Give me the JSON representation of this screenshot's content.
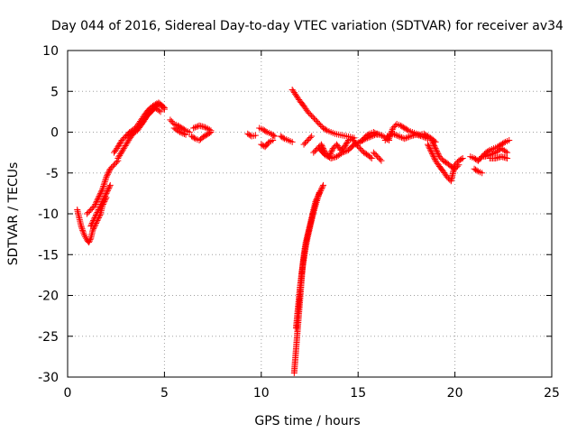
{
  "chart_data": {
    "type": "scatter",
    "title": "Day 044 of 2016, Sidereal Day-to-day VTEC variation (SDTVAR) for receiver av34",
    "xlabel": "GPS time / hours",
    "ylabel": "SDTVAR / TECUs",
    "xlim": [
      0,
      25
    ],
    "ylim": [
      -30,
      10
    ],
    "xticks": [
      0,
      5,
      10,
      15,
      20,
      25
    ],
    "yticks": [
      -30,
      -25,
      -20,
      -15,
      -10,
      -5,
      0,
      5,
      10
    ],
    "xtick_labels": [
      "0",
      "5",
      "10",
      "15",
      "20",
      "25"
    ],
    "ytick_labels": [
      "-30",
      "-25",
      "-20",
      "-15",
      "-10",
      "-5",
      "0",
      "5",
      "10"
    ],
    "grid": true,
    "marker": "+",
    "color": "#ff0000",
    "series": [
      {
        "name": "SDTVAR",
        "segments": [
          {
            "x": [
              0.5,
              0.6,
              0.7,
              0.8,
              0.9,
              1.0,
              1.1,
              1.2,
              1.3,
              1.4,
              1.5,
              1.6,
              1.7,
              1.8,
              1.9,
              2.0
            ],
            "y": [
              -9.5,
              -10.5,
              -11.5,
              -12.2,
              -12.8,
              -13.2,
              -13.5,
              -13.0,
              -12.0,
              -11.5,
              -11.0,
              -10.5,
              -10.0,
              -9.0,
              -8.5,
              -8.0
            ]
          },
          {
            "x": [
              1.0,
              1.2,
              1.4,
              1.6,
              1.8,
              2.0,
              2.2,
              2.4,
              2.6
            ],
            "y": [
              -10.0,
              -9.5,
              -9.0,
              -8.0,
              -7.0,
              -5.5,
              -4.5,
              -4.0,
              -3.5
            ]
          },
          {
            "x": [
              1.2,
              1.4,
              1.6,
              1.8,
              2.0,
              2.2
            ],
            "y": [
              -11.5,
              -10.5,
              -9.5,
              -8.5,
              -7.5,
              -6.5
            ]
          },
          {
            "x": [
              2.4,
              2.6,
              2.8,
              3.0,
              3.2,
              3.4,
              3.6,
              3.8,
              4.0,
              4.2,
              4.4,
              4.6,
              4.8,
              5.0
            ],
            "y": [
              -2.5,
              -1.8,
              -1.0,
              -0.5,
              0.0,
              0.3,
              0.8,
              1.5,
              2.2,
              2.8,
              3.2,
              3.5,
              3.3,
              2.8
            ]
          },
          {
            "x": [
              2.6,
              2.9,
              3.2,
              3.5,
              3.8,
              4.1,
              4.4,
              4.7,
              5.0
            ],
            "y": [
              -3.2,
              -2.0,
              -0.8,
              0.2,
              1.0,
              2.0,
              2.7,
              3.6,
              3.0
            ]
          },
          {
            "x": [
              3.0,
              3.3,
              3.6,
              3.9,
              4.2,
              4.5,
              4.8
            ],
            "y": [
              -0.5,
              -0.2,
              0.2,
              1.2,
              2.4,
              3.0,
              2.5
            ]
          },
          {
            "x": [
              5.3,
              5.5,
              5.7,
              5.9,
              6.1,
              6.3
            ],
            "y": [
              1.5,
              1.0,
              0.8,
              0.5,
              0.2,
              0.0
            ]
          },
          {
            "x": [
              5.5,
              5.8,
              6.1
            ],
            "y": [
              0.5,
              0.0,
              -0.3
            ]
          },
          {
            "x": [
              6.4,
              6.6,
              6.8,
              7.0,
              7.2,
              7.4
            ],
            "y": [
              -0.5,
              -0.8,
              -1.0,
              -0.6,
              -0.3,
              0.0
            ]
          },
          {
            "x": [
              6.5,
              6.8,
              7.1,
              7.4
            ],
            "y": [
              0.5,
              0.8,
              0.6,
              0.2
            ]
          },
          {
            "x": [
              9.3,
              9.5,
              9.7
            ],
            "y": [
              -0.2,
              -0.5,
              -0.4
            ]
          },
          {
            "x": [
              9.9,
              10.1,
              10.3,
              10.5,
              10.7
            ],
            "y": [
              0.5,
              0.3,
              0.0,
              -0.2,
              -0.5
            ]
          },
          {
            "x": [
              10.0,
              10.2,
              10.4,
              10.6
            ],
            "y": [
              -1.5,
              -1.8,
              -1.2,
              -1.0
            ]
          },
          {
            "x": [
              11.0,
              11.2,
              11.4,
              11.6
            ],
            "y": [
              -0.5,
              -0.8,
              -1.0,
              -1.2
            ]
          },
          {
            "x": [
              11.6,
              11.8,
              12.0,
              12.2,
              12.4,
              12.6,
              12.8,
              13.0,
              13.2,
              13.4,
              13.6,
              13.8,
              14.0,
              14.2,
              14.4,
              14.6,
              14.8
            ],
            "y": [
              5.2,
              4.5,
              3.8,
              3.2,
              2.5,
              2.0,
              1.5,
              1.0,
              0.5,
              0.2,
              0.0,
              -0.2,
              -0.3,
              -0.4,
              -0.5,
              -0.6,
              -0.7
            ]
          },
          {
            "x": [
              11.7,
              11.75,
              11.8,
              11.85,
              11.9,
              11.95,
              12.0,
              12.05,
              12.1,
              12.15,
              12.2,
              12.3,
              12.4,
              12.5,
              12.6,
              12.7,
              12.8,
              12.9,
              13.0,
              13.1,
              13.2
            ],
            "y": [
              -29.5,
              -28.0,
              -26.5,
              -25.0,
              -23.5,
              -22.0,
              -20.5,
              -19.0,
              -17.5,
              -16.0,
              -15.0,
              -13.5,
              -12.5,
              -11.5,
              -10.5,
              -9.5,
              -8.5,
              -8.0,
              -7.5,
              -7.0,
              -6.5
            ]
          },
          {
            "x": [
              11.8,
              11.9,
              12.0,
              12.1,
              12.2,
              12.3,
              12.4,
              12.5,
              12.6,
              12.7,
              12.8,
              12.9,
              13.0
            ],
            "y": [
              -24.0,
              -21.5,
              -19.0,
              -17.0,
              -15.5,
              -14.0,
              -12.8,
              -11.8,
              -10.8,
              -9.8,
              -9.0,
              -8.2,
              -7.4
            ]
          },
          {
            "x": [
              12.2,
              12.4,
              12.6
            ],
            "y": [
              -1.5,
              -1.0,
              -0.5
            ]
          },
          {
            "x": [
              12.7,
              12.9,
              13.1,
              13.3,
              13.5,
              13.7,
              13.9,
              14.1,
              14.3,
              14.5,
              14.7,
              14.9,
              15.1,
              15.3,
              15.5,
              15.7
            ],
            "y": [
              -2.5,
              -2.0,
              -1.5,
              -2.5,
              -3.0,
              -2.0,
              -1.5,
              -2.2,
              -1.8,
              -1.0,
              -0.8,
              -1.5,
              -2.0,
              -2.5,
              -2.8,
              -3.2
            ]
          },
          {
            "x": [
              13.0,
              13.3,
              13.6,
              13.9,
              14.2,
              14.5,
              14.8,
              15.1,
              15.4,
              15.7,
              16.0,
              16.3,
              16.6
            ],
            "y": [
              -2.0,
              -2.8,
              -3.2,
              -3.0,
              -2.5,
              -2.2,
              -1.5,
              -1.2,
              -0.8,
              -0.5,
              -0.2,
              -0.5,
              -1.0
            ]
          },
          {
            "x": [
              15.2,
              15.4,
              15.6,
              15.8,
              16.0
            ],
            "y": [
              -1.0,
              -0.5,
              -0.2,
              0.0,
              -0.3
            ]
          },
          {
            "x": [
              15.8,
              16.0,
              16.2
            ],
            "y": [
              -2.5,
              -3.0,
              -3.5
            ]
          },
          {
            "x": [
              16.4,
              16.6,
              16.8,
              17.0,
              17.2,
              17.4,
              17.6,
              17.8,
              18.0,
              18.2,
              18.4,
              18.6,
              18.8,
              19.0
            ],
            "y": [
              -1.0,
              -0.8,
              0.5,
              1.0,
              0.8,
              0.5,
              0.2,
              0.0,
              -0.2,
              -0.3,
              -0.2,
              -0.5,
              -0.8,
              -1.2
            ]
          },
          {
            "x": [
              16.5,
              16.8,
              17.1,
              17.4,
              17.7,
              18.0,
              18.3,
              18.6
            ],
            "y": [
              -0.5,
              -0.2,
              -0.5,
              -0.8,
              -0.5,
              -0.3,
              -0.5,
              -0.8
            ]
          },
          {
            "x": [
              18.6,
              18.8,
              19.0,
              19.2,
              19.4,
              19.6,
              19.8,
              20.0,
              20.2,
              20.4
            ],
            "y": [
              -1.5,
              -2.5,
              -3.5,
              -4.2,
              -4.8,
              -5.5,
              -6.0,
              -4.0,
              -3.5,
              -3.2
            ]
          },
          {
            "x": [
              18.8,
              19.0,
              19.2,
              19.4,
              19.6,
              19.8,
              20.0,
              20.2
            ],
            "y": [
              -1.0,
              -2.0,
              -3.0,
              -3.5,
              -3.8,
              -4.2,
              -4.5,
              -4.0
            ]
          },
          {
            "x": [
              20.8,
              21.0,
              21.2,
              21.4
            ],
            "y": [
              -3.0,
              -3.2,
              -3.5,
              -3.0
            ]
          },
          {
            "x": [
              21.0,
              21.2,
              21.4
            ],
            "y": [
              -4.5,
              -4.8,
              -5.0
            ]
          },
          {
            "x": [
              21.2,
              21.4,
              21.6,
              21.8,
              22.0,
              22.2,
              22.4,
              22.6,
              22.8
            ],
            "y": [
              -3.5,
              -3.0,
              -2.5,
              -2.2,
              -2.0,
              -1.8,
              -1.5,
              -1.2,
              -1.0
            ]
          },
          {
            "x": [
              21.5,
              21.8,
              22.1,
              22.4,
              22.7
            ],
            "y": [
              -3.0,
              -2.8,
              -2.5,
              -2.0,
              -2.5
            ]
          },
          {
            "x": [
              21.8,
              22.1,
              22.4,
              22.7
            ],
            "y": [
              -3.2,
              -3.2,
              -3.0,
              -3.2
            ]
          }
        ]
      }
    ]
  }
}
